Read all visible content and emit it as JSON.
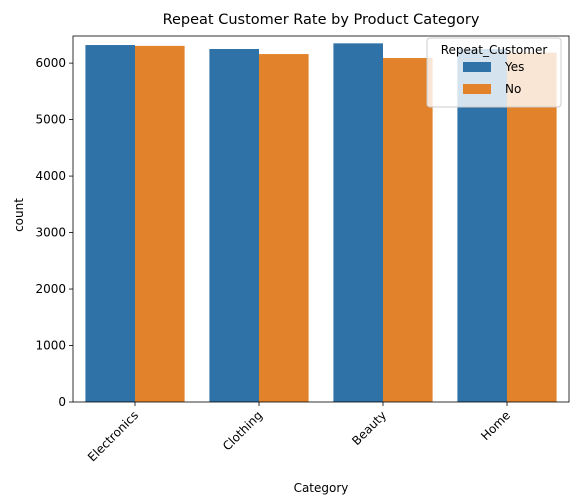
{
  "chart_data": {
    "type": "bar",
    "title": "Repeat Customer Rate by Product Category",
    "xlabel": "Category",
    "ylabel": "count",
    "categories": [
      "Electronics",
      "Clothing",
      "Beauty",
      "Home"
    ],
    "ylim": [
      0,
      6480
    ],
    "yticks": [
      0,
      1000,
      2000,
      3000,
      4000,
      5000,
      6000
    ],
    "series": [
      {
        "name": "Yes",
        "color": "#2f72a8",
        "values": [
          6320,
          6250,
          6350,
          6250
        ]
      },
      {
        "name": "No",
        "color": "#e2822b",
        "values": [
          6305,
          6160,
          6090,
          6185
        ]
      }
    ],
    "legend": {
      "title": "Repeat_Customer",
      "position": "top-right"
    },
    "grid": false
  }
}
